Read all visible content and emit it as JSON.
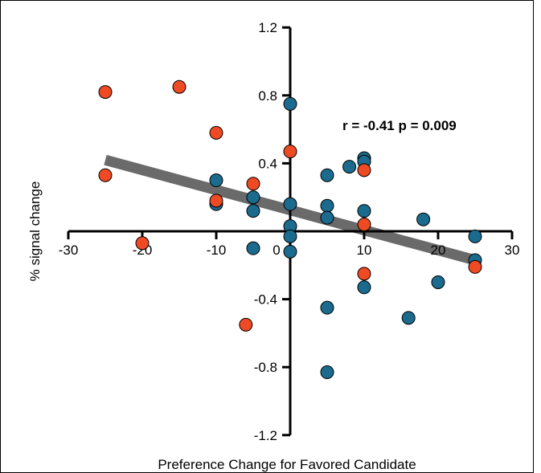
{
  "chart_data": {
    "type": "scatter",
    "xlabel": "Preference Change for Favored Candidate",
    "ylabel": "% signal change",
    "xlim": [
      -30,
      30
    ],
    "ylim": [
      -1.2,
      1.2
    ],
    "x_ticks": [
      "-30",
      "-20",
      "-10",
      "0",
      "10",
      "20",
      "30"
    ],
    "y_ticks": [
      "1.2",
      "0.8",
      "0.4",
      "-0.4",
      "-0.8",
      "-1.2"
    ],
    "annotation": "r = -0.41 p = 0.009",
    "colors": {
      "blue": "#1b6b8e",
      "orange": "#ee4a24",
      "trend": "#6a6a6a"
    },
    "trendline": {
      "x": [
        -25,
        25
      ],
      "y": [
        0.42,
        -0.17
      ]
    },
    "series": [
      {
        "color": "#1b6b8e",
        "points": [
          [
            -10,
            0.3
          ],
          [
            -10,
            0.16
          ],
          [
            -5,
            0.2
          ],
          [
            -5,
            0.12
          ],
          [
            -5,
            -0.1
          ],
          [
            0,
            0.75
          ],
          [
            0,
            0.16
          ],
          [
            0,
            0.03
          ],
          [
            0,
            -0.03
          ],
          [
            0,
            -0.12
          ],
          [
            5,
            0.33
          ],
          [
            5,
            0.15
          ],
          [
            5,
            0.08
          ],
          [
            5,
            -0.45
          ],
          [
            5,
            -0.83
          ],
          [
            8,
            0.38
          ],
          [
            10,
            0.43
          ],
          [
            10,
            0.41
          ],
          [
            10,
            0.12
          ],
          [
            10,
            -0.33
          ],
          [
            16,
            -0.51
          ],
          [
            18,
            0.07
          ],
          [
            20,
            -0.3
          ],
          [
            25,
            -0.03
          ],
          [
            25,
            -0.17
          ]
        ]
      },
      {
        "color": "#ee4a24",
        "points": [
          [
            -25,
            0.82
          ],
          [
            -25,
            0.33
          ],
          [
            -20,
            -0.07
          ],
          [
            -15,
            0.85
          ],
          [
            -10,
            0.58
          ],
          [
            -10,
            0.18
          ],
          [
            -5,
            0.28
          ],
          [
            -6,
            -0.55
          ],
          [
            0,
            0.47
          ],
          [
            10,
            0.36
          ],
          [
            10,
            0.04
          ],
          [
            10,
            -0.25
          ],
          [
            25,
            -0.21
          ]
        ]
      }
    ]
  }
}
